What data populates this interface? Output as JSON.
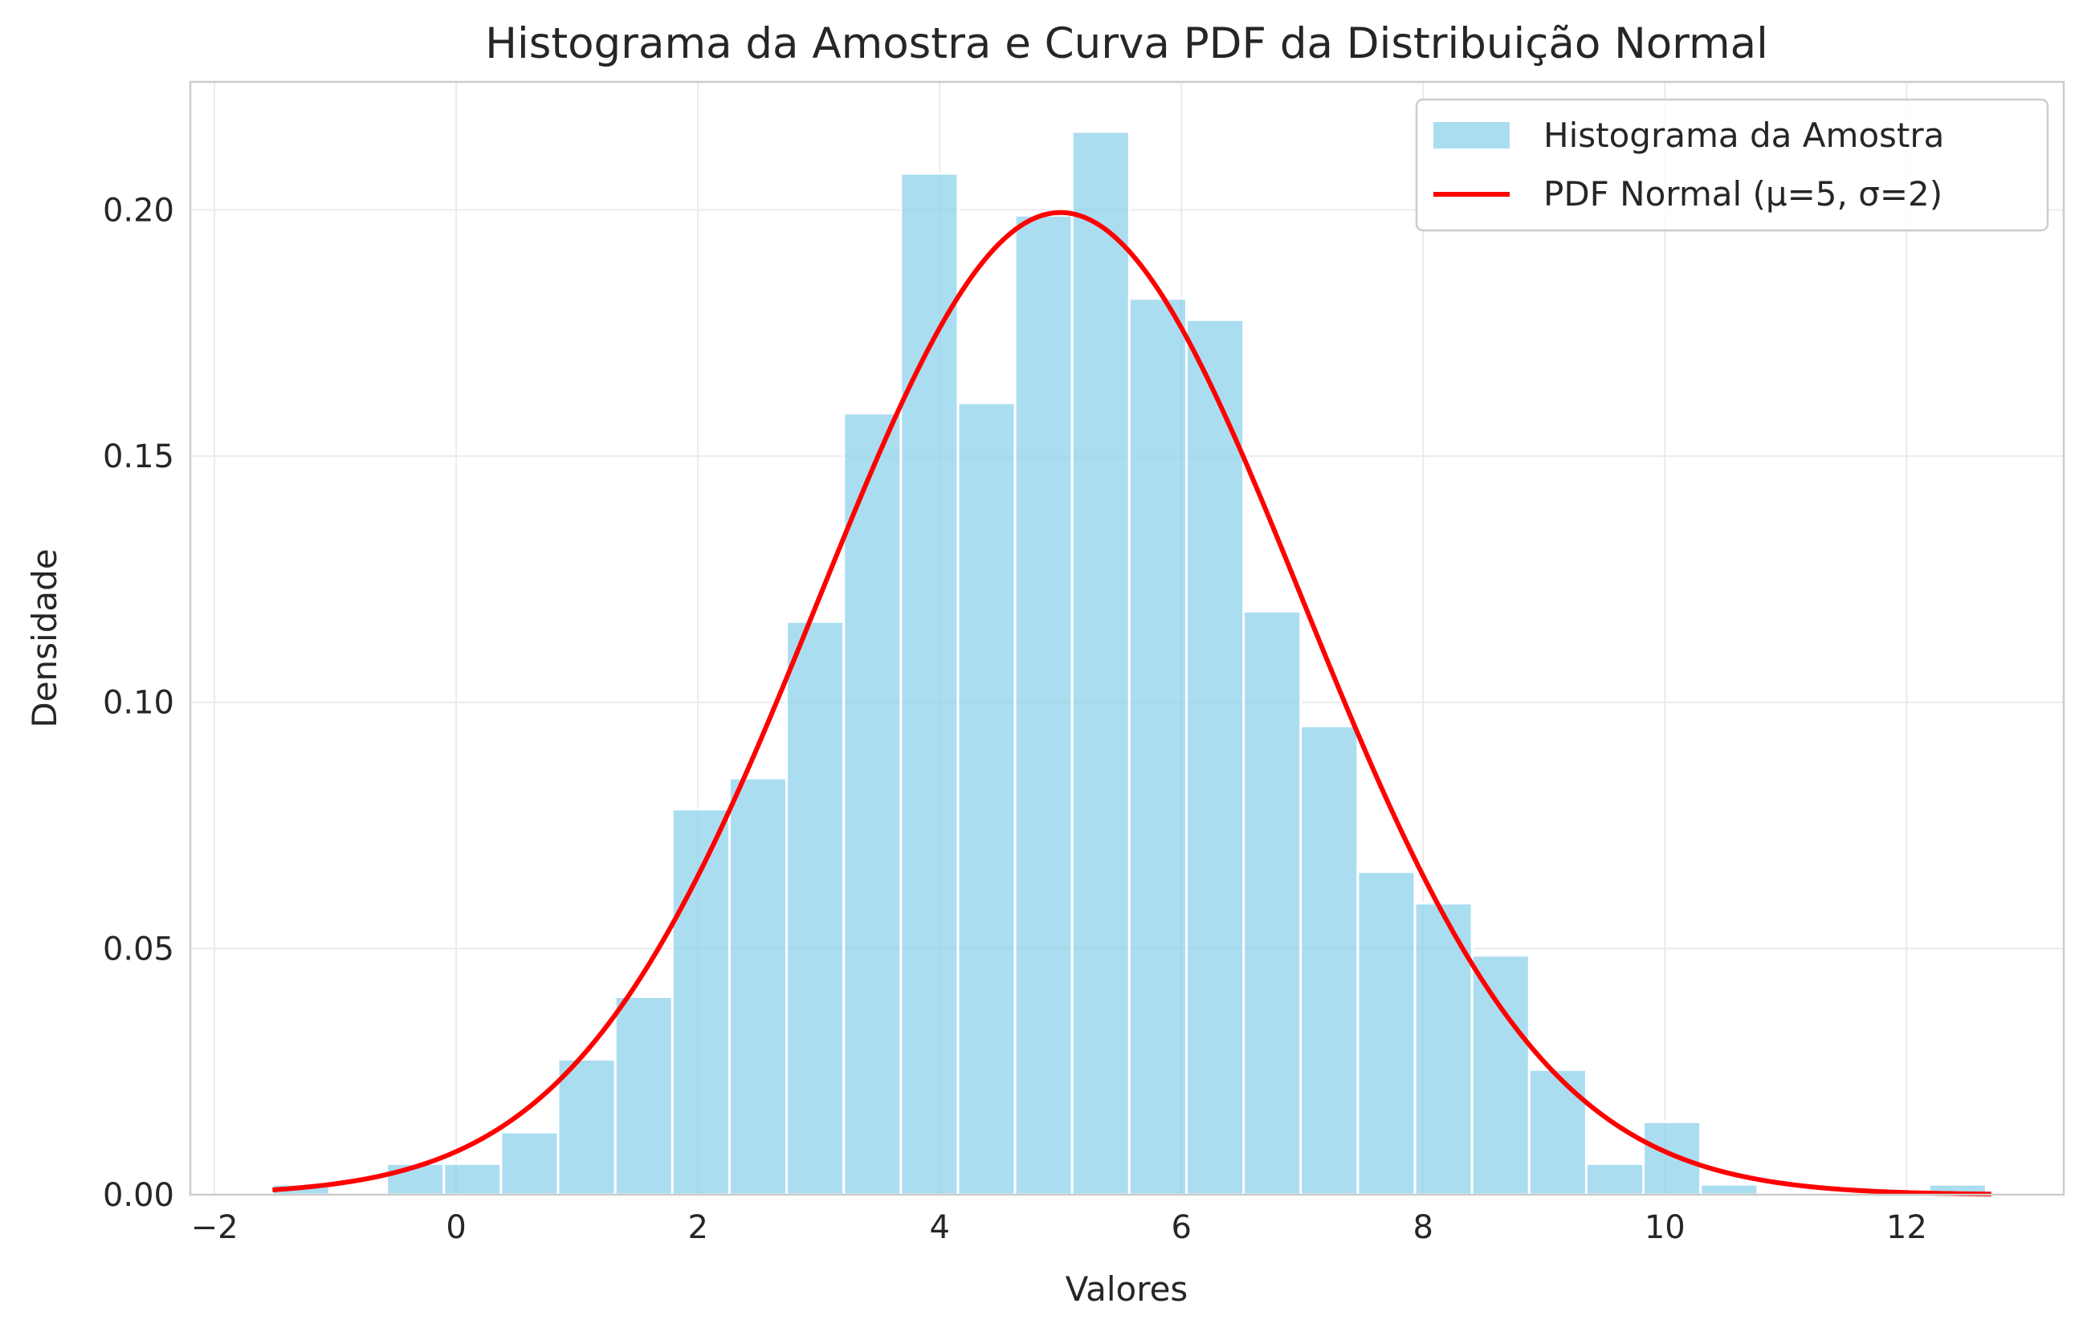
{
  "chart_data": {
    "type": "histogram",
    "title": "Histograma da Amostra e Curva PDF da Distribuição Normal",
    "xlabel": "Valores",
    "ylabel": "Densidade",
    "xlim": [
      -2.2,
      13.3
    ],
    "ylim": [
      0,
      0.226
    ],
    "grid": true,
    "legend_position": "top-right",
    "xticks": [
      -2,
      0,
      2,
      4,
      6,
      8,
      10,
      12
    ],
    "xtick_labels": [
      "−2",
      "0",
      "2",
      "4",
      "6",
      "8",
      "10",
      "12"
    ],
    "yticks": [
      0,
      0.05,
      0.1,
      0.15,
      0.2
    ],
    "ytick_labels": [
      "0.00",
      "0.05",
      "0.10",
      "0.15",
      "0.20"
    ],
    "colors": {
      "hist": "#87ceeb",
      "pdf": "#ff0000",
      "grid": "#ebebeb",
      "spine": "#cccccc"
    },
    "histogram": {
      "name": "Histograma da Amostra",
      "bin_start": -1.52,
      "bin_width": 0.4726,
      "values": [
        0.0021,
        0.0,
        0.0063,
        0.0063,
        0.0127,
        0.0275,
        0.0402,
        0.0783,
        0.0846,
        0.1164,
        0.1587,
        0.2074,
        0.1608,
        0.1989,
        0.2159,
        0.182,
        0.1777,
        0.1185,
        0.0952,
        0.0656,
        0.0592,
        0.0486,
        0.0254,
        0.0063,
        0.0148,
        0.0021,
        0.0,
        0.0,
        0.0,
        0.0021
      ]
    },
    "pdf": {
      "name": "PDF Normal (μ=5, σ=2)",
      "mu": 5,
      "sigma": 2,
      "x_range": [
        -1.52,
        12.7
      ]
    }
  }
}
